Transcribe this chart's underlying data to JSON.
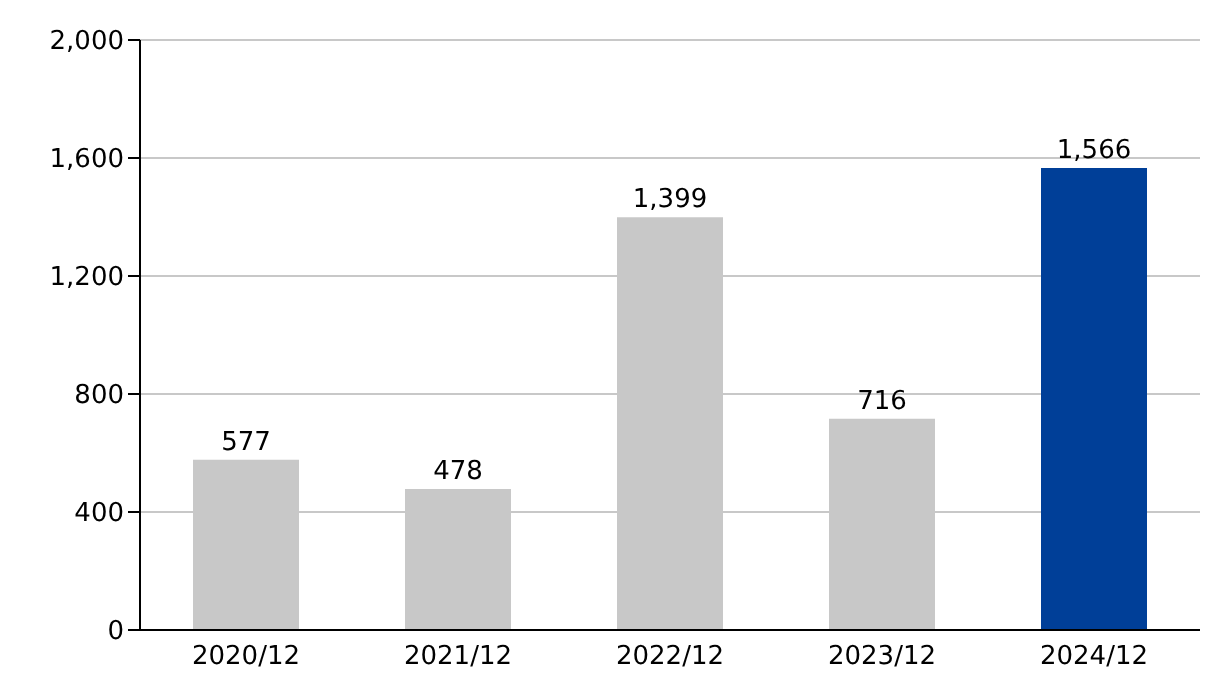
{
  "chart_data": {
    "type": "bar",
    "categories": [
      "2020/12",
      "2021/12",
      "2022/12",
      "2023/12",
      "2024/12"
    ],
    "values": [
      577,
      478,
      1399,
      716,
      1566
    ],
    "colors": [
      "#c8c8c8",
      "#c8c8c8",
      "#c8c8c8",
      "#c8c8c8",
      "#003f98"
    ],
    "value_labels": [
      "577",
      "478",
      "1,399",
      "716",
      "1,566"
    ],
    "ylim": [
      0,
      2000
    ],
    "yticks": [
      0,
      {
        "value": 400,
        "label": "400"
      },
      {
        "value": 800,
        "label": "800"
      },
      {
        "value": 1200,
        "label": "1,200"
      },
      {
        "value": 1600,
        "label": "1,600"
      },
      {
        "value": 2000,
        "label": "2,000"
      }
    ],
    "grid": "y"
  }
}
